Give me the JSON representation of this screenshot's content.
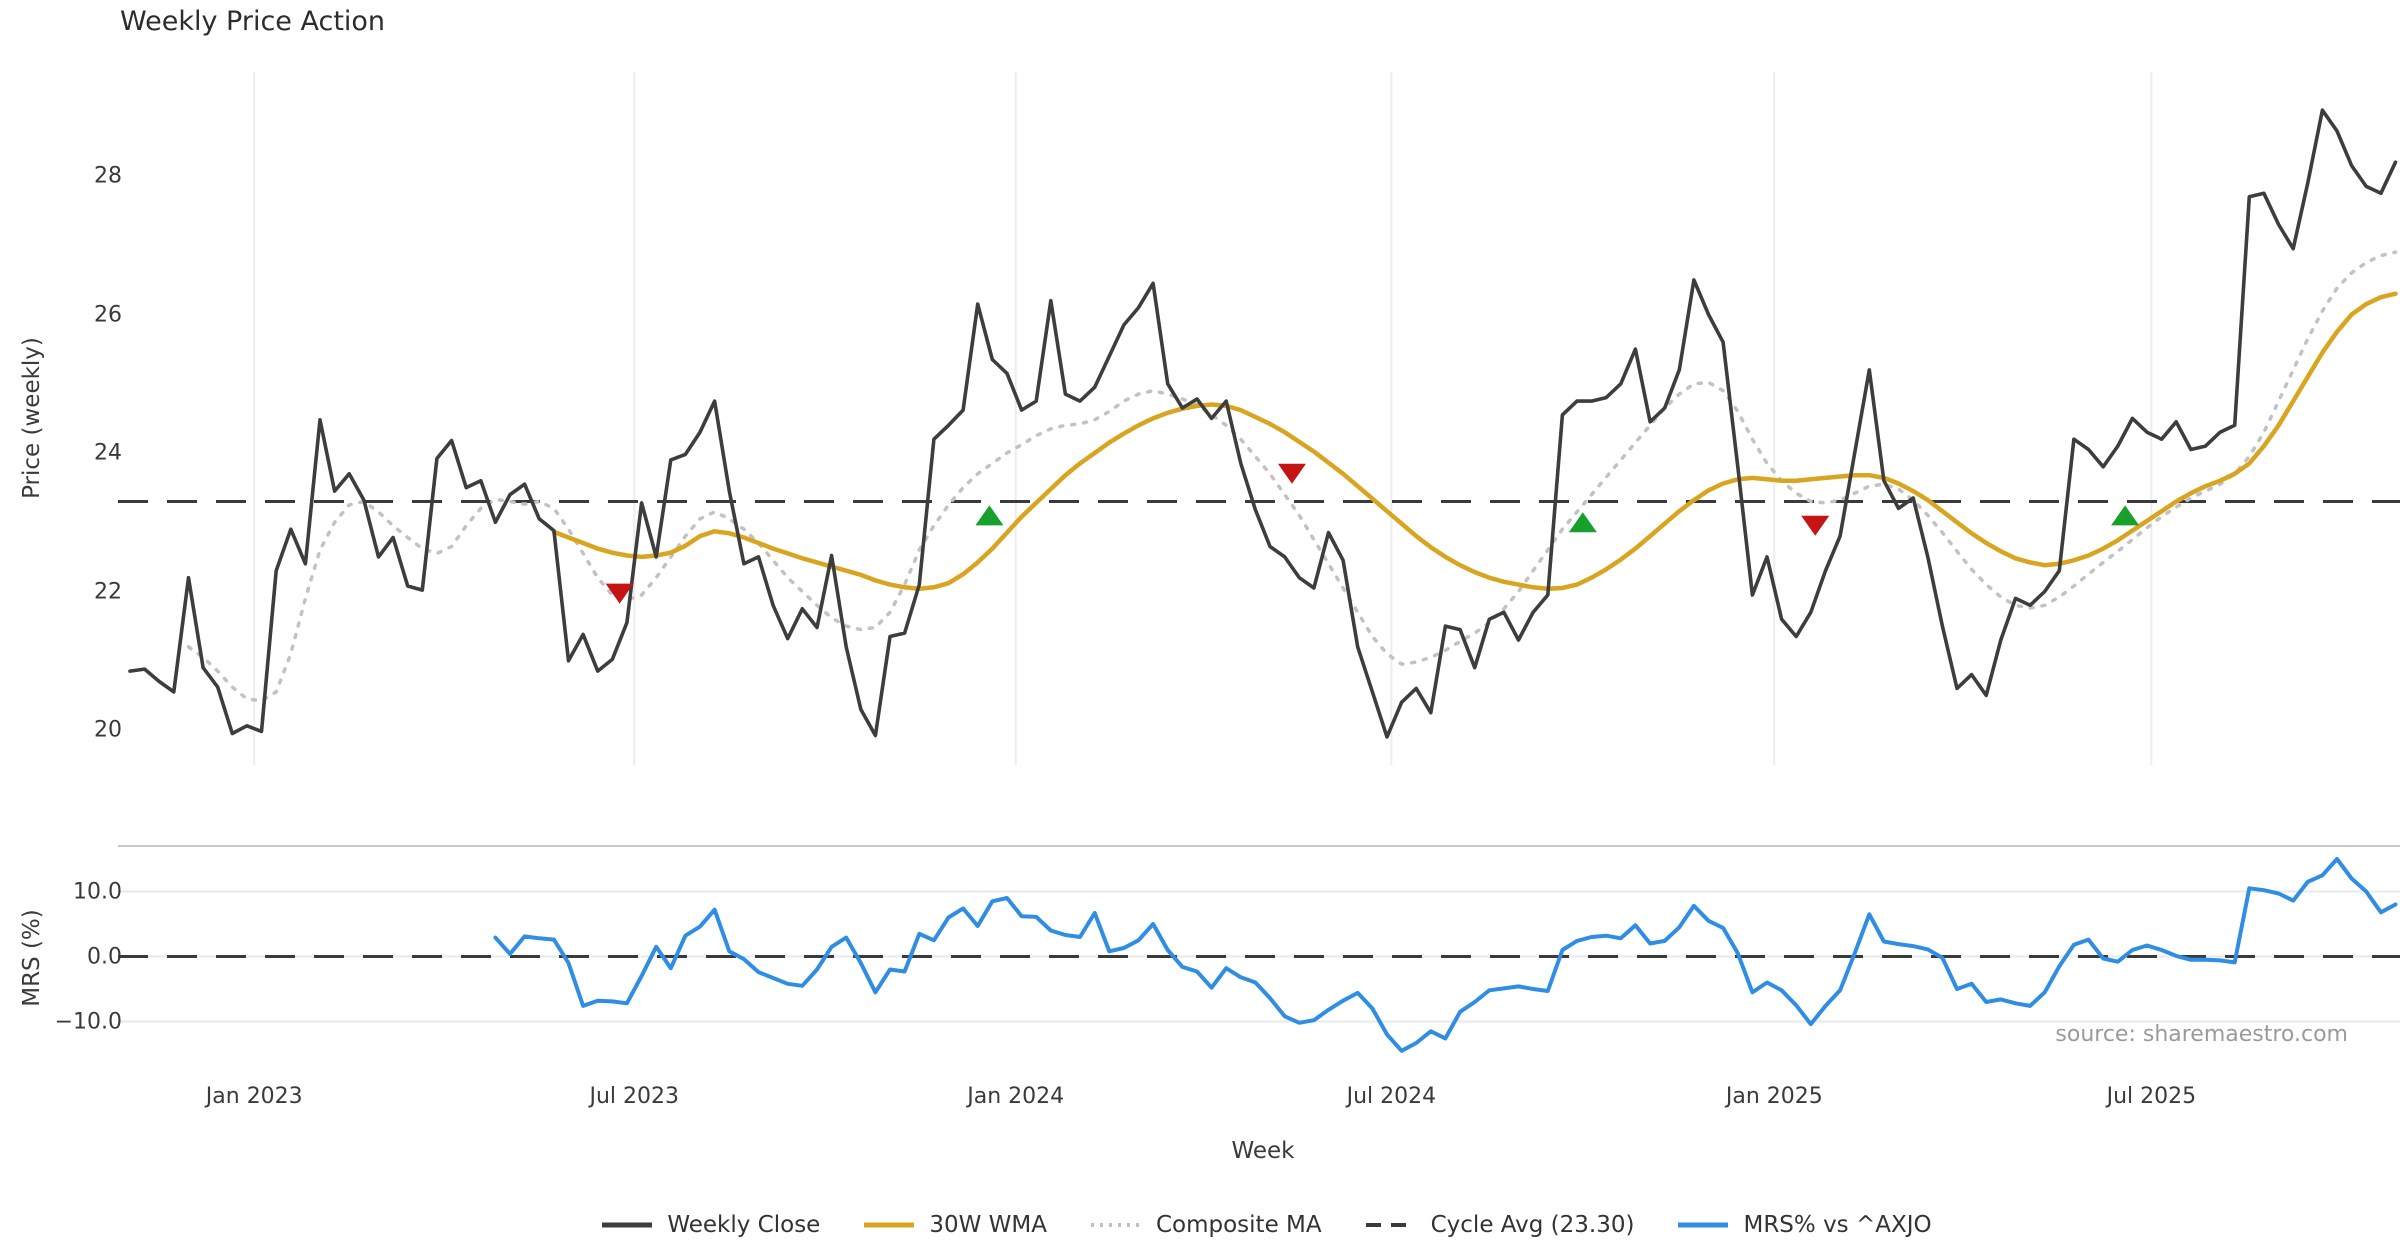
{
  "title": "Weekly Price Action",
  "source_text": "source: sharemaestro.com",
  "xlabel": "Week",
  "legend": {
    "items": [
      {
        "label": "Weekly Close",
        "style": "solid",
        "color": "#3d3d3d"
      },
      {
        "label": "30W WMA",
        "style": "solid",
        "color": "#d9a521"
      },
      {
        "label": "Composite MA",
        "style": "dotted",
        "color": "#c2c2c2"
      },
      {
        "label": "Cycle Avg (23.30)",
        "style": "dashed",
        "color": "#3a3a3a"
      },
      {
        "label": "MRS% vs ^AXJO",
        "style": "solid",
        "color": "#2f8ee3"
      }
    ]
  },
  "colors": {
    "close": "#3d3d3d",
    "wma": "#d9a521",
    "composite": "#c2c2c2",
    "dashed": "#3a3a3a",
    "mrs": "#2f8ee3",
    "buy_marker": "#17a02c",
    "sell_marker": "#c41414",
    "gridline": "#ededef",
    "mrs_gridline": "#e9e9ec",
    "mrs_top_border": "#c8c8c8"
  },
  "chart_data": [
    {
      "type": "line",
      "panel": "price",
      "title": "Weekly Price Action",
      "xlabel": "Week",
      "ylabel": "Price (weekly)",
      "ylim": [
        19.5,
        29.5
      ],
      "yticks": [
        20,
        22,
        24,
        26,
        28
      ],
      "grid": "vertical-only",
      "xticks": [
        {
          "label": "Jan 2023",
          "week": 8.5
        },
        {
          "label": "Jul 2023",
          "week": 34.5
        },
        {
          "label": "Jan 2024",
          "week": 60.6
        },
        {
          "label": "Jul 2024",
          "week": 86.3
        },
        {
          "label": "Jan 2025",
          "week": 112.5
        },
        {
          "label": "Jul 2025",
          "week": 138.3
        }
      ],
      "cycle_avg_line": 23.3,
      "series": [
        {
          "name": "Weekly Close",
          "style": "solid",
          "start_week": 0,
          "values": [
            20.85,
            20.88,
            20.7,
            20.55,
            22.2,
            20.9,
            20.62,
            19.95,
            20.06,
            19.98,
            22.3,
            22.9,
            22.4,
            24.48,
            23.45,
            23.7,
            23.32,
            22.5,
            22.78,
            22.08,
            22.02,
            23.92,
            24.18,
            23.5,
            23.6,
            23.0,
            23.4,
            23.55,
            23.05,
            22.88,
            21.0,
            21.38,
            20.85,
            21.02,
            21.55,
            23.28,
            22.5,
            23.9,
            23.98,
            24.3,
            24.75,
            23.45,
            22.4,
            22.5,
            21.8,
            21.32,
            21.75,
            21.48,
            22.52,
            21.2,
            20.3,
            19.92,
            21.35,
            21.4,
            22.1,
            24.2,
            24.4,
            24.62,
            26.15,
            25.35,
            25.15,
            24.62,
            24.75,
            26.2,
            24.85,
            24.75,
            24.95,
            25.4,
            25.85,
            26.1,
            26.45,
            25.0,
            24.65,
            24.78,
            24.5,
            24.75,
            23.85,
            23.18,
            22.65,
            22.5,
            22.2,
            22.05,
            22.85,
            22.45,
            21.2,
            20.55,
            19.9,
            20.4,
            20.6,
            20.25,
            21.5,
            21.45,
            20.9,
            21.6,
            21.7,
            21.3,
            21.7,
            21.95,
            24.55,
            24.75,
            24.75,
            24.8,
            25.0,
            25.5,
            24.45,
            24.65,
            25.2,
            26.5,
            26.0,
            25.6,
            23.8,
            21.95,
            22.5,
            21.6,
            21.35,
            21.7,
            22.3,
            22.8,
            24.0,
            25.2,
            23.6,
            23.2,
            23.35,
            22.5,
            21.5,
            20.6,
            20.8,
            20.5,
            21.3,
            21.9,
            21.8,
            22.0,
            22.3,
            24.2,
            24.05,
            23.8,
            24.1,
            24.5,
            24.3,
            24.2,
            24.45,
            24.05,
            24.1,
            24.3,
            24.4,
            27.7,
            27.75,
            27.3,
            26.95,
            27.9,
            28.95,
            28.65,
            28.15,
            27.85,
            27.75,
            28.2
          ]
        },
        {
          "name": "30W WMA",
          "style": "solid",
          "start_week": 29,
          "values": [
            22.86,
            22.78,
            22.7,
            22.62,
            22.56,
            22.52,
            22.5,
            22.52,
            22.56,
            22.66,
            22.8,
            22.87,
            22.84,
            22.78,
            22.7,
            22.62,
            22.55,
            22.48,
            22.42,
            22.36,
            22.3,
            22.24,
            22.16,
            22.1,
            22.06,
            22.04,
            22.06,
            22.12,
            22.25,
            22.42,
            22.62,
            22.85,
            23.08,
            23.28,
            23.48,
            23.68,
            23.85,
            24.0,
            24.15,
            24.28,
            24.4,
            24.5,
            24.58,
            24.64,
            24.68,
            24.7,
            24.68,
            24.62,
            24.52,
            24.42,
            24.3,
            24.16,
            24.02,
            23.86,
            23.7,
            23.52,
            23.34,
            23.16,
            22.98,
            22.8,
            22.64,
            22.5,
            22.38,
            22.28,
            22.2,
            22.14,
            22.1,
            22.06,
            22.04,
            22.05,
            22.1,
            22.2,
            22.32,
            22.46,
            22.62,
            22.8,
            22.98,
            23.16,
            23.32,
            23.46,
            23.56,
            23.62,
            23.64,
            23.62,
            23.6,
            23.6,
            23.62,
            23.64,
            23.66,
            23.68,
            23.68,
            23.64,
            23.56,
            23.45,
            23.32,
            23.16,
            23.0,
            22.84,
            22.7,
            22.58,
            22.48,
            22.42,
            22.38,
            22.4,
            22.45,
            22.52,
            22.62,
            22.74,
            22.88,
            23.02,
            23.16,
            23.3,
            23.42,
            23.52,
            23.6,
            23.7,
            23.85,
            24.1,
            24.4,
            24.75,
            25.1,
            25.45,
            25.75,
            26.0,
            26.15,
            26.25,
            26.3
          ]
        },
        {
          "name": "Composite MA",
          "style": "dotted",
          "start_week": 4,
          "values": [
            21.2,
            21.05,
            20.85,
            20.62,
            20.45,
            20.42,
            20.55,
            21.1,
            21.9,
            22.6,
            23.0,
            23.25,
            23.3,
            23.15,
            22.95,
            22.78,
            22.62,
            22.55,
            22.65,
            22.95,
            23.2,
            23.33,
            23.3,
            23.26,
            23.3,
            23.2,
            22.9,
            22.55,
            22.2,
            21.95,
            21.88,
            21.95,
            22.2,
            22.5,
            22.8,
            23.05,
            23.15,
            23.05,
            22.9,
            22.7,
            22.45,
            22.2,
            22.0,
            21.8,
            21.62,
            21.5,
            21.45,
            21.48,
            21.7,
            22.1,
            22.6,
            22.95,
            23.25,
            23.5,
            23.7,
            23.85,
            24.0,
            24.12,
            24.25,
            24.35,
            24.4,
            24.42,
            24.48,
            24.6,
            24.75,
            24.85,
            24.9,
            24.85,
            24.78,
            24.7,
            24.55,
            24.4,
            24.2,
            23.95,
            23.7,
            23.4,
            23.1,
            22.75,
            22.4,
            22.05,
            21.7,
            21.35,
            21.1,
            20.95,
            20.98,
            21.05,
            21.15,
            21.28,
            21.4,
            21.55,
            21.75,
            22.0,
            22.3,
            22.6,
            22.9,
            23.15,
            23.4,
            23.65,
            23.9,
            24.15,
            24.4,
            24.65,
            24.85,
            25.0,
            25.02,
            24.9,
            24.6,
            24.2,
            23.85,
            23.6,
            23.42,
            23.3,
            23.28,
            23.32,
            23.42,
            23.52,
            23.55,
            23.48,
            23.32,
            23.1,
            22.85,
            22.58,
            22.32,
            22.1,
            21.92,
            21.8,
            21.76,
            21.8,
            21.92,
            22.08,
            22.25,
            22.42,
            22.58,
            22.75,
            22.92,
            23.08,
            23.22,
            23.35,
            23.45,
            23.55,
            23.7,
            23.95,
            24.3,
            24.75,
            25.2,
            25.65,
            26.05,
            26.38,
            26.6,
            26.75,
            26.85,
            26.9
          ]
        }
      ],
      "markers": [
        {
          "week": 33.5,
          "value": 21.97,
          "type": "sell"
        },
        {
          "week": 58.8,
          "value": 23.1,
          "type": "buy"
        },
        {
          "week": 79.5,
          "value": 23.7,
          "type": "sell"
        },
        {
          "week": 99.4,
          "value": 23.0,
          "type": "buy"
        },
        {
          "week": 115.3,
          "value": 22.95,
          "type": "sell"
        },
        {
          "week": 136.5,
          "value": 23.1,
          "type": "buy"
        }
      ]
    },
    {
      "type": "line",
      "panel": "mrs",
      "ylabel": "MRS (%)",
      "ylim": [
        -17,
        16.5
      ],
      "yticks": [
        {
          "label": "10.0",
          "value": 10
        },
        {
          "label": "0.0",
          "value": 0
        },
        {
          "label": "−10.0",
          "value": -10
        }
      ],
      "zero_dashed_line": 0,
      "grid": "horizontal-only",
      "series": [
        {
          "name": "MRS% vs ^AXJO",
          "style": "solid",
          "start_week": 25,
          "values": [
            2.9,
            0.4,
            3.1,
            2.8,
            2.6,
            -1.0,
            -7.6,
            -6.8,
            -6.9,
            -7.2,
            -3.0,
            1.5,
            -1.8,
            3.2,
            4.6,
            7.2,
            0.8,
            -0.4,
            -2.4,
            -3.3,
            -4.2,
            -4.5,
            -2.0,
            1.5,
            2.9,
            -1.0,
            -5.5,
            -2.0,
            -2.3,
            3.5,
            2.5,
            6.0,
            7.4,
            4.7,
            8.5,
            9.0,
            6.2,
            6.1,
            4.0,
            3.3,
            3.0,
            6.7,
            0.8,
            1.3,
            2.5,
            5.0,
            1.0,
            -1.6,
            -2.3,
            -4.8,
            -1.8,
            -3.2,
            -4.0,
            -6.4,
            -9.2,
            -10.2,
            -9.8,
            -8.2,
            -6.8,
            -5.6,
            -8.0,
            -12.0,
            -14.5,
            -13.3,
            -11.5,
            -12.6,
            -8.5,
            -7.0,
            -5.2,
            -4.9,
            -4.6,
            -5.0,
            -5.3,
            1.0,
            2.4,
            3.0,
            3.2,
            2.8,
            4.8,
            2.0,
            2.4,
            4.5,
            7.8,
            5.5,
            4.4,
            0.5,
            -5.5,
            -4.0,
            -5.2,
            -7.5,
            -10.4,
            -7.6,
            -5.2,
            0.5,
            6.5,
            2.3,
            1.9,
            1.6,
            1.1,
            -0.2,
            -5.0,
            -4.2,
            -7.0,
            -6.6,
            -7.2,
            -7.6,
            -5.5,
            -1.5,
            1.8,
            2.6,
            -0.3,
            -0.8,
            1.0,
            1.7,
            1.0,
            0.1,
            -0.5,
            -0.5,
            -0.6,
            -0.9,
            10.5,
            10.2,
            9.7,
            8.6,
            11.5,
            12.5,
            15.0,
            12.0,
            10.0,
            6.8,
            8.0
          ]
        }
      ]
    }
  ]
}
